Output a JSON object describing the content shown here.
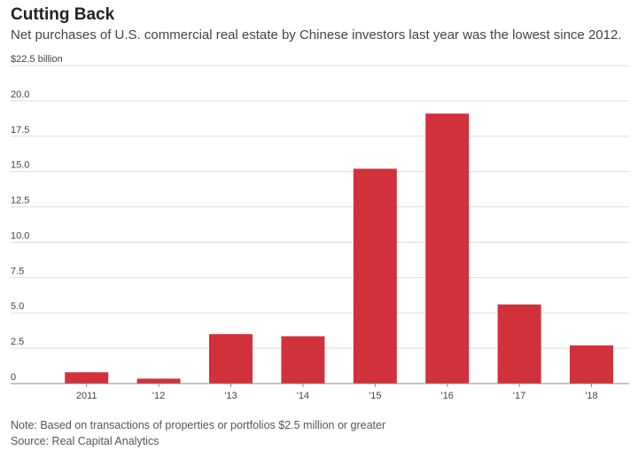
{
  "header": {
    "title": "Cutting Back",
    "subtitle": "Net purchases of U.S. commercial real estate by Chinese investors last year was the lowest since 2012."
  },
  "footer": {
    "note": "Note: Based on transactions of properties or portfolios $2.5 million or greater",
    "source": "Source: Real Capital Analytics"
  },
  "colors": {
    "bar": "#d1313b",
    "grid": "#dddddd",
    "axis": "#888888"
  },
  "chart_data": {
    "type": "bar",
    "title": "Cutting Back",
    "xlabel": "",
    "ylabel": "$22.5 billion",
    "ylim": [
      0,
      22.5
    ],
    "yticks": [
      0,
      2.5,
      5.0,
      7.5,
      10.0,
      12.5,
      15.0,
      17.5,
      20.0
    ],
    "ytick_labels": [
      "0",
      "2.5",
      "5.0",
      "7.5",
      "10.0",
      "12.5",
      "15.0",
      "17.5",
      "20.0"
    ],
    "top_label": "$22.5 billion",
    "categories": [
      "2011",
      "'12",
      "'13",
      "'14",
      "'15",
      "'16",
      "'17",
      "'18"
    ],
    "values": [
      0.8,
      0.35,
      3.5,
      3.35,
      15.2,
      19.1,
      5.6,
      2.7
    ]
  }
}
